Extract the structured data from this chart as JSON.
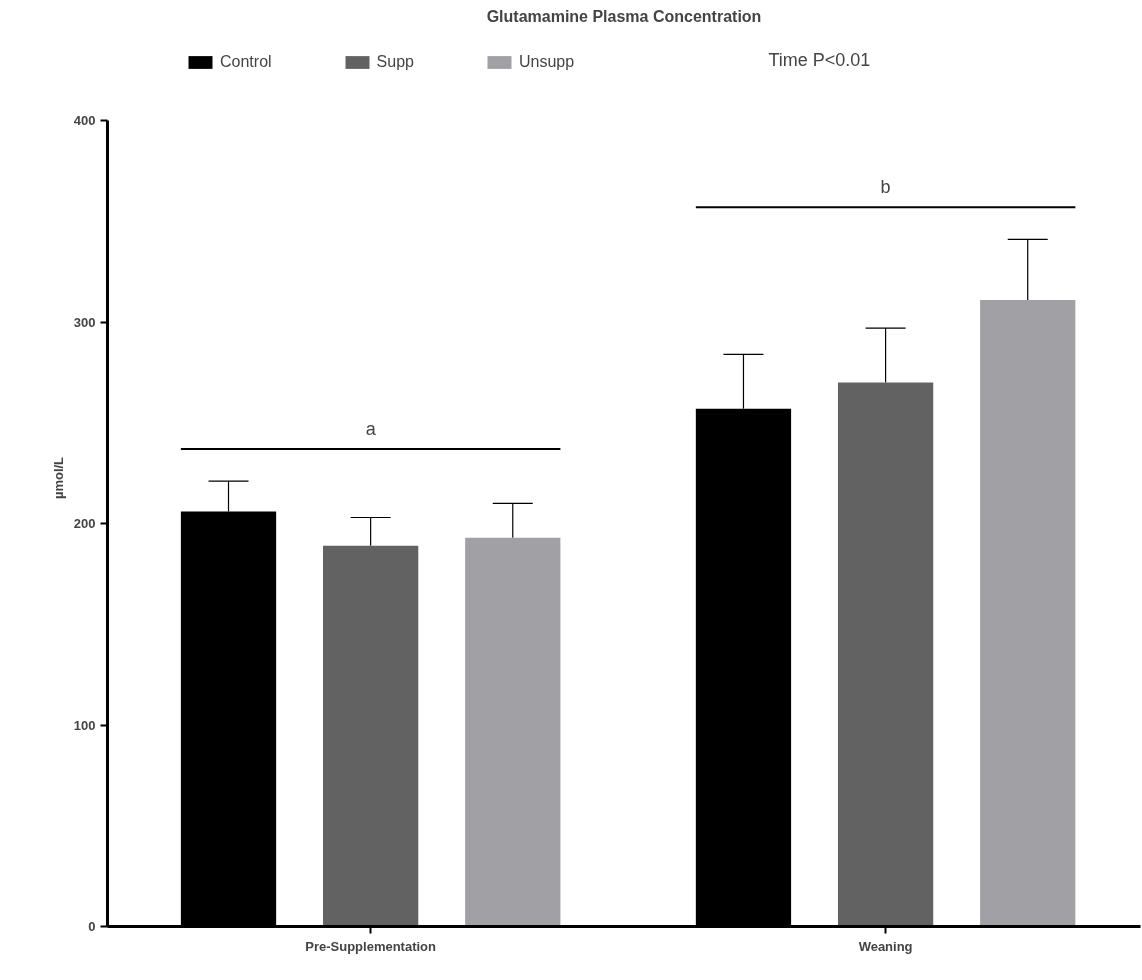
{
  "chart_data": {
    "type": "bar",
    "title": "Glutamamine Plasma Concentration",
    "ylabel": "µmol/L",
    "categories": [
      "Pre-Supplementation",
      "Weaning"
    ],
    "series": [
      {
        "name": "Control",
        "color": "#000000",
        "values": [
          206,
          257
        ],
        "errors": [
          [
            206,
            221
          ],
          [
            257,
            284
          ]
        ]
      },
      {
        "name": "Supp",
        "color": "#626262",
        "values": [
          189,
          270
        ],
        "errors": [
          [
            189,
            203
          ],
          [
            270,
            297
          ]
        ]
      },
      {
        "name": "Unsupp",
        "color": "#a1a0a4",
        "values": [
          193,
          311
        ],
        "errors": [
          [
            193,
            210
          ],
          [
            311,
            341
          ]
        ]
      }
    ],
    "ylim": [
      0,
      400
    ],
    "yticks": [
      0,
      100,
      200,
      300,
      400
    ],
    "grid": false,
    "legend": "top",
    "annotations": [
      "a",
      "b",
      "Time P<0.01"
    ]
  }
}
